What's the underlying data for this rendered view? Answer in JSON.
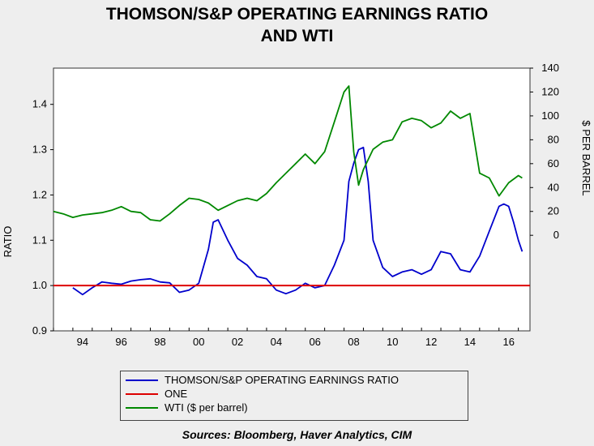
{
  "title": {
    "line1": "THOMSON/S&P OPERATING EARNINGS RATIO",
    "line2": "AND WTI"
  },
  "source": "Sources:  Bloomberg, Haver Analytics, CIM",
  "chart_data": {
    "type": "line",
    "title": "THOMSON/S&P OPERATING EARNINGS RATIO AND WTI",
    "x_ticks": [
      "94",
      "96",
      "98",
      "00",
      "02",
      "04",
      "06",
      "08",
      "10",
      "12",
      "14",
      "16"
    ],
    "xlim": [
      1993.0,
      2017.6
    ],
    "left_axis": {
      "label": "RATIO",
      "ylim": [
        0.9,
        1.48
      ],
      "ticks": [
        "0.9",
        "1.0",
        "1.1",
        "1.2",
        "1.3",
        "1.4"
      ]
    },
    "right_axis": {
      "label": "$ PER BARREL",
      "ylim": [
        -80,
        140
      ],
      "ticks": [
        "0",
        "20",
        "40",
        "60",
        "80",
        "100",
        "120",
        "140"
      ]
    },
    "legend": {
      "position": "bottom",
      "entries": [
        "THOMSON/S&P OPERATING EARNINGS RATIO",
        "ONE",
        "WTI ($ per barrel)"
      ]
    },
    "series": [
      {
        "name": "THOMSON/S&P OPERATING EARNINGS RATIO",
        "axis": "left",
        "color": "#0000cc",
        "x": [
          1994.0,
          1994.5,
          1995.0,
          1995.5,
          1996.0,
          1996.5,
          1997.0,
          1997.5,
          1998.0,
          1998.5,
          1999.0,
          1999.5,
          2000.0,
          2000.5,
          2001.0,
          2001.25,
          2001.5,
          2002.0,
          2002.5,
          2003.0,
          2003.5,
          2004.0,
          2004.5,
          2005.0,
          2005.5,
          2006.0,
          2006.5,
          2007.0,
          2007.5,
          2008.0,
          2008.25,
          2008.5,
          2008.75,
          2009.0,
          2009.25,
          2009.5,
          2010.0,
          2010.5,
          2011.0,
          2011.5,
          2012.0,
          2012.5,
          2013.0,
          2013.5,
          2014.0,
          2014.5,
          2015.0,
          2015.5,
          2016.0,
          2016.25,
          2016.5,
          2016.75,
          2017.0,
          2017.2
        ],
        "values": [
          0.995,
          0.98,
          0.995,
          1.008,
          1.005,
          1.003,
          1.01,
          1.013,
          1.015,
          1.008,
          1.006,
          0.985,
          0.99,
          1.005,
          1.08,
          1.14,
          1.145,
          1.1,
          1.06,
          1.045,
          1.02,
          1.015,
          0.99,
          0.982,
          0.99,
          1.005,
          0.995,
          1.0,
          1.045,
          1.1,
          1.23,
          1.27,
          1.3,
          1.305,
          1.23,
          1.1,
          1.04,
          1.02,
          1.03,
          1.035,
          1.025,
          1.035,
          1.075,
          1.07,
          1.035,
          1.03,
          1.065,
          1.12,
          1.175,
          1.18,
          1.175,
          1.14,
          1.1,
          1.075
        ]
      },
      {
        "name": "ONE",
        "axis": "left",
        "color": "#dd0000",
        "x": [
          1993.0,
          2017.6
        ],
        "values": [
          1.0,
          1.0
        ]
      },
      {
        "name": "WTI ($ per barrel)",
        "axis": "right",
        "color": "#008800",
        "x": [
          1993.0,
          1993.5,
          1994.0,
          1994.5,
          1995.0,
          1995.5,
          1996.0,
          1996.5,
          1997.0,
          1997.5,
          1998.0,
          1998.5,
          1999.0,
          1999.5,
          2000.0,
          2000.5,
          2001.0,
          2001.5,
          2002.0,
          2002.5,
          2003.0,
          2003.5,
          2004.0,
          2004.5,
          2005.0,
          2005.5,
          2006.0,
          2006.5,
          2007.0,
          2007.5,
          2008.0,
          2008.25,
          2008.5,
          2008.75,
          2009.0,
          2009.5,
          2010.0,
          2010.5,
          2011.0,
          2011.5,
          2012.0,
          2012.5,
          2013.0,
          2013.5,
          2014.0,
          2014.5,
          2015.0,
          2015.5,
          2016.0,
          2016.5,
          2017.0,
          2017.2
        ],
        "values": [
          20,
          18,
          15,
          17,
          18,
          19,
          21,
          24,
          20,
          19,
          13,
          12,
          18,
          25,
          31,
          30,
          27,
          21,
          25,
          29,
          31,
          29,
          35,
          44,
          52,
          60,
          68,
          60,
          70,
          95,
          120,
          125,
          70,
          42,
          55,
          72,
          78,
          80,
          95,
          98,
          96,
          90,
          94,
          104,
          98,
          102,
          52,
          48,
          33,
          44,
          50,
          48
        ]
      }
    ]
  }
}
